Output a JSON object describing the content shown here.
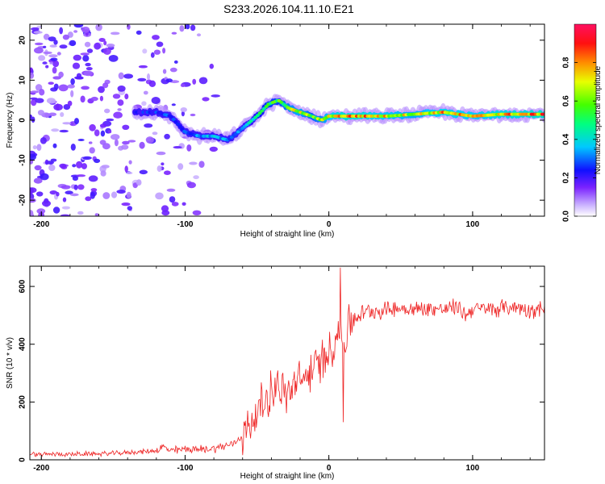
{
  "title": "S233.2026.104.11.10.E21",
  "chart_data": [
    {
      "type": "heatmap",
      "name": "spectrogram",
      "xlabel": "Height of straight line (km)",
      "ylabel": "Frequency (Hz)",
      "xlim": [
        -208,
        150
      ],
      "ylim": [
        -24,
        24
      ],
      "xticks": [
        -200,
        -100,
        0,
        100
      ],
      "xtick_labels": [
        "-200",
        "-100",
        "0",
        "100"
      ],
      "yticks": [
        -20,
        -10,
        0,
        10,
        20
      ],
      "ytick_labels": [
        "-20",
        "-10",
        "0",
        "10",
        "20"
      ],
      "colorbar": {
        "label": "Normalized spectral amplitude",
        "range": [
          0,
          1
        ],
        "ticks": [
          0.0,
          0.2,
          0.4,
          0.6,
          0.8
        ],
        "tick_labels": [
          "0.0",
          "0.2",
          "0.4",
          "0.6",
          "0.8"
        ]
      },
      "ridge": {
        "x": [
          -135,
          -120,
          -110,
          -100,
          -90,
          -80,
          -70,
          -60,
          -50,
          -42,
          -35,
          -28,
          -20,
          -12,
          -5,
          0,
          10,
          20,
          40,
          60,
          80,
          100,
          120,
          150
        ],
        "freq_hz": [
          2,
          2,
          1,
          -3,
          -4,
          -4,
          -5,
          -2,
          1,
          4,
          5,
          3,
          2,
          1,
          0,
          1,
          1,
          1,
          1,
          1.5,
          2,
          1,
          1.5,
          1.5
        ],
        "amplitude": [
          0.25,
          0.3,
          0.3,
          0.3,
          0.35,
          0.4,
          0.35,
          0.4,
          0.5,
          0.6,
          0.6,
          0.7,
          0.75,
          0.65,
          0.7,
          0.8,
          0.9,
          0.9,
          0.8,
          0.75,
          0.85,
          0.8,
          0.85,
          0.9
        ]
      }
    },
    {
      "type": "line",
      "name": "snr",
      "xlabel": "Height of straight line (km)",
      "ylabel": "SNR (10 * v/v)",
      "xlim": [
        -208,
        150
      ],
      "ylim": [
        0,
        670
      ],
      "xticks": [
        -200,
        -100,
        0,
        100
      ],
      "xtick_labels": [
        "-200",
        "-100",
        "0",
        "100"
      ],
      "yticks": [
        0,
        200,
        400,
        600
      ],
      "ytick_labels": [
        "0",
        "200",
        "400",
        "600"
      ],
      "color": "#ee2222",
      "x": [
        -208,
        -200,
        -190,
        -180,
        -170,
        -160,
        -150,
        -140,
        -130,
        -120,
        -115,
        -110,
        -100,
        -90,
        -80,
        -70,
        -65,
        -60,
        -55,
        -50,
        -45,
        -40,
        -35,
        -30,
        -25,
        -20,
        -15,
        -10,
        -5,
        0,
        5,
        8,
        10,
        15,
        20,
        25,
        30,
        35,
        40,
        50,
        60,
        70,
        80,
        90,
        95,
        100,
        110,
        120,
        130,
        140,
        150
      ],
      "y": [
        20,
        18,
        20,
        19,
        20,
        21,
        22,
        25,
        28,
        32,
        45,
        30,
        38,
        35,
        40,
        50,
        60,
        85,
        120,
        160,
        200,
        240,
        260,
        220,
        250,
        270,
        290,
        320,
        340,
        380,
        420,
        460,
        400,
        480,
        500,
        510,
        520,
        515,
        520,
        525,
        520,
        525,
        520,
        530,
        500,
        525,
        520,
        525,
        530,
        520,
        525
      ]
    }
  ]
}
